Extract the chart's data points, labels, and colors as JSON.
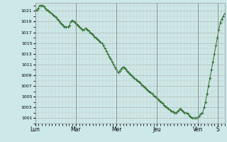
{
  "bg_color": "#cce8e8",
  "plot_bg_color": "#cce8e8",
  "line_color": "#2d6e2d",
  "marker_color": "#2d6e2d",
  "grid_major_color": "#b0b0b0",
  "grid_minor_color": "#c8c8c8",
  "ylim": [
    1000,
    1022.5
  ],
  "yticks": [
    1001,
    1003,
    1005,
    1007,
    1009,
    1011,
    1013,
    1015,
    1017,
    1019,
    1021
  ],
  "xtick_labels": [
    "Lun",
    "Mar",
    "Mer",
    "Jeu",
    "Ven",
    "S"
  ],
  "xtick_positions": [
    0,
    24,
    48,
    72,
    96,
    108
  ],
  "total_hours": 112,
  "pressure_data": [
    1021.0,
    1021.2,
    1021.5,
    1022.0,
    1022.0,
    1022.0,
    1021.8,
    1021.5,
    1021.2,
    1021.0,
    1020.8,
    1020.5,
    1020.2,
    1020.0,
    1019.8,
    1019.5,
    1019.2,
    1018.8,
    1018.5,
    1018.2,
    1018.0,
    1018.0,
    1018.0,
    1018.2,
    1019.0,
    1019.2,
    1019.0,
    1018.8,
    1018.5,
    1018.3,
    1018.0,
    1017.8,
    1017.5,
    1017.5,
    1017.8,
    1017.5,
    1017.3,
    1017.0,
    1016.8,
    1016.5,
    1016.2,
    1016.0,
    1015.8,
    1015.5,
    1015.2,
    1015.0,
    1014.5,
    1014.0,
    1013.5,
    1013.0,
    1012.5,
    1012.0,
    1011.5,
    1011.0,
    1010.5,
    1010.0,
    1009.5,
    1009.8,
    1010.2,
    1010.5,
    1010.5,
    1010.2,
    1009.8,
    1009.5,
    1009.2,
    1009.0,
    1008.8,
    1008.5,
    1008.2,
    1008.0,
    1007.8,
    1007.5,
    1007.2,
    1007.0,
    1006.8,
    1006.5,
    1006.2,
    1006.0,
    1005.8,
    1005.5,
    1005.2,
    1005.0,
    1004.8,
    1004.5,
    1004.2,
    1004.0,
    1003.8,
    1003.5,
    1003.2,
    1003.0,
    1002.8,
    1002.5,
    1002.3,
    1002.2,
    1002.0,
    1002.0,
    1002.2,
    1002.5,
    1002.8,
    1002.5,
    1002.3,
    1002.0,
    1002.0,
    1001.8,
    1001.5,
    1001.2,
    1001.0,
    1001.0,
    1001.0,
    1001.0,
    1001.2,
    1001.5,
    1001.8,
    1002.0,
    1003.0,
    1004.0,
    1005.5,
    1007.0,
    1008.5,
    1010.0,
    1011.5,
    1013.0,
    1014.5,
    1016.0,
    1017.5,
    1018.8,
    1019.5,
    1020.0,
    1020.5
  ]
}
